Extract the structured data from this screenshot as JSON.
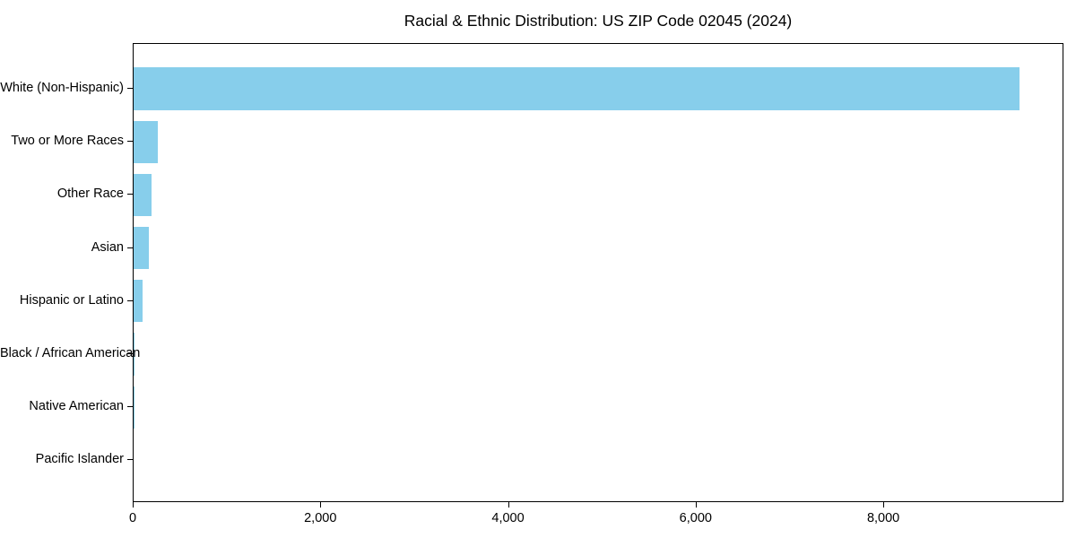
{
  "chart_data": {
    "type": "bar",
    "orientation": "horizontal",
    "title": "Racial & Ethnic Distribution: US ZIP Code 02045 (2024)",
    "categories": [
      "White (Non-Hispanic)",
      "Two or More Races",
      "Other Race",
      "Asian",
      "Hispanic or Latino",
      "Black / African American",
      "Native American",
      "Pacific Islander"
    ],
    "values": [
      9440,
      258,
      194,
      163,
      93,
      12,
      4,
      0
    ],
    "xlabel": "",
    "ylabel": "",
    "xlim": [
      0,
      9920
    ],
    "x_ticks": [
      0,
      2000,
      4000,
      6000,
      8000
    ],
    "x_tick_labels": [
      "0",
      "2,000",
      "4,000",
      "6,000",
      "8,000"
    ],
    "grid": false,
    "legend": null,
    "bar_color": "#87CEEB",
    "axis_color": "#000000",
    "text_color": "#000000",
    "background_color": "#ffffff"
  }
}
